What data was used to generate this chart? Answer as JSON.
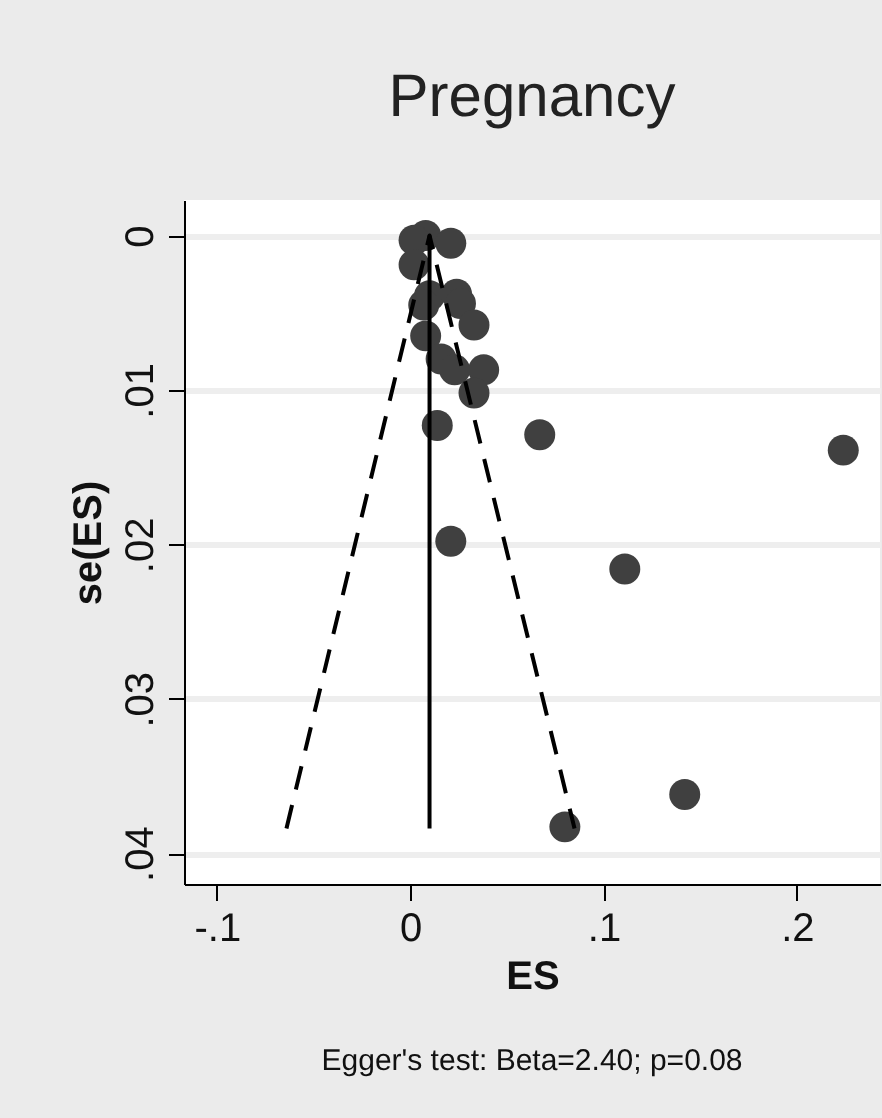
{
  "chart_data": {
    "type": "scatter",
    "title": "Pregnancy",
    "xlabel": "ES",
    "ylabel": "se(ES)",
    "annotations": [
      "Egger's test: Beta=2.40; p=0.08"
    ],
    "xlim": [
      -0.117,
      0.243
    ],
    "ylim": [
      0.042,
      -0.0023
    ],
    "xticks": [
      {
        "value": -0.1,
        "label": "-.1"
      },
      0,
      {
        "value": 0.1,
        "label": ".1"
      },
      {
        "value": 0.2,
        "label": ".2"
      }
    ],
    "yticks": [
      0,
      {
        "value": 0.01,
        "label": ".01"
      },
      {
        "value": 0.02,
        "label": ".02"
      },
      {
        "value": 0.03,
        "label": ".03"
      },
      {
        "value": 0.04,
        "label": ".04"
      }
    ],
    "grid": "y",
    "series": [
      {
        "color": "#404040",
        "marker": "circle",
        "x": [
          0.008,
          0.002,
          0.021,
          0.002,
          0.01,
          0.024,
          0.026,
          0.007,
          0.033,
          0.008,
          0.016,
          0.023,
          0.038,
          0.033,
          0.014,
          0.067,
          0.224,
          0.021,
          0.111,
          0.08,
          0.142
        ],
        "values": [
          0.0,
          0.0003,
          0.0005,
          0.0019,
          0.0039,
          0.0038,
          0.0044,
          0.0045,
          0.0058,
          0.0065,
          0.008,
          0.0087,
          0.0087,
          0.0102,
          0.0123,
          0.0129,
          0.0139,
          0.0198,
          0.0216,
          0.0383,
          0.0362
        ]
      },
      {
        "type": "line",
        "color": "#000000",
        "line_style": "dashed",
        "x": [
          -0.064,
          0.01,
          0.085
        ],
        "values": [
          0.0384,
          0.0,
          0.0384
        ]
      },
      {
        "type": "line",
        "color": "#000000",
        "line_style": "solid",
        "x": [
          0.01,
          0.01
        ],
        "values": [
          0.0384,
          0.0
        ]
      }
    ]
  }
}
